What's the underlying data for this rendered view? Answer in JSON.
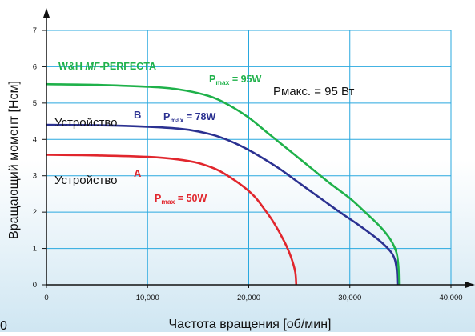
{
  "colors": {
    "grid": "#29a8df",
    "series_green": "#1fb14a",
    "series_blue": "#2b3191",
    "series_red": "#e1262d",
    "axis": "#111111",
    "background_gradient_top": "#ffffff",
    "background_gradient_bottom": "#cfe6f2"
  },
  "chart_data": {
    "type": "line",
    "title": "",
    "xlabel": "Частота вращения [об/мин]",
    "ylabel": "Вращающий момент [Нсм]",
    "xlim": [
      0,
      40000
    ],
    "ylim": [
      0,
      7
    ],
    "x_ticks": [
      {
        "value": 0,
        "label": "0"
      },
      {
        "value": 10000,
        "label": "10,000"
      },
      {
        "value": 20000,
        "label": "20,000"
      },
      {
        "value": 30000,
        "label": "30,000"
      },
      {
        "value": 40000,
        "label": "40,000"
      }
    ],
    "y_ticks": [
      {
        "value": 0,
        "label": "0"
      },
      {
        "value": 1,
        "label": "1"
      },
      {
        "value": 2,
        "label": "2"
      },
      {
        "value": 3,
        "label": "3"
      },
      {
        "value": 4,
        "label": "4"
      },
      {
        "value": 5,
        "label": "5"
      },
      {
        "value": 6,
        "label": "6"
      },
      {
        "value": 7,
        "label": "7"
      }
    ],
    "grid": true,
    "series": [
      {
        "name": "W&H MF-PERFECTA",
        "color": "#1fb14a",
        "points": [
          [
            0,
            5.52
          ],
          [
            5000,
            5.5
          ],
          [
            10000,
            5.45
          ],
          [
            13000,
            5.38
          ],
          [
            16000,
            5.2
          ],
          [
            18000,
            4.95
          ],
          [
            20000,
            4.6
          ],
          [
            22000,
            4.15
          ],
          [
            24000,
            3.7
          ],
          [
            26000,
            3.25
          ],
          [
            28000,
            2.8
          ],
          [
            30000,
            2.38
          ],
          [
            31500,
            2.0
          ],
          [
            33000,
            1.6
          ],
          [
            34000,
            1.25
          ],
          [
            34600,
            0.9
          ],
          [
            34800,
            0.5
          ],
          [
            34850,
            0
          ]
        ]
      },
      {
        "name": "Устройство B",
        "color": "#2b3191",
        "points": [
          [
            0,
            4.4
          ],
          [
            5000,
            4.39
          ],
          [
            10000,
            4.35
          ],
          [
            13000,
            4.3
          ],
          [
            15000,
            4.22
          ],
          [
            17000,
            4.08
          ],
          [
            19000,
            3.85
          ],
          [
            21000,
            3.55
          ],
          [
            23000,
            3.2
          ],
          [
            25000,
            2.8
          ],
          [
            27000,
            2.4
          ],
          [
            29000,
            2.0
          ],
          [
            31000,
            1.62
          ],
          [
            33000,
            1.2
          ],
          [
            34200,
            0.85
          ],
          [
            34600,
            0.5
          ],
          [
            34700,
            0
          ]
        ]
      },
      {
        "name": "Устройство A",
        "color": "#e1262d",
        "points": [
          [
            0,
            3.58
          ],
          [
            5000,
            3.56
          ],
          [
            10000,
            3.52
          ],
          [
            13000,
            3.45
          ],
          [
            15000,
            3.35
          ],
          [
            17000,
            3.15
          ],
          [
            19000,
            2.8
          ],
          [
            20500,
            2.45
          ],
          [
            21500,
            2.1
          ],
          [
            22500,
            1.7
          ],
          [
            23500,
            1.2
          ],
          [
            24200,
            0.75
          ],
          [
            24600,
            0.35
          ],
          [
            24700,
            0
          ]
        ]
      }
    ],
    "annotations": {
      "product_prefix": "W&H ",
      "product_italic": "MF",
      "product_suffix": "-PERFECTA",
      "device_label": "Устройство",
      "letter_b": "B",
      "letter_a": "A",
      "p_letter": "P",
      "p_sub": "max",
      "p95": " = 95W",
      "p78": " = 78W",
      "p50": " = 50W",
      "pmax_ru": "Рмакс. = 95 Вт"
    },
    "corner_fragment": "0"
  }
}
